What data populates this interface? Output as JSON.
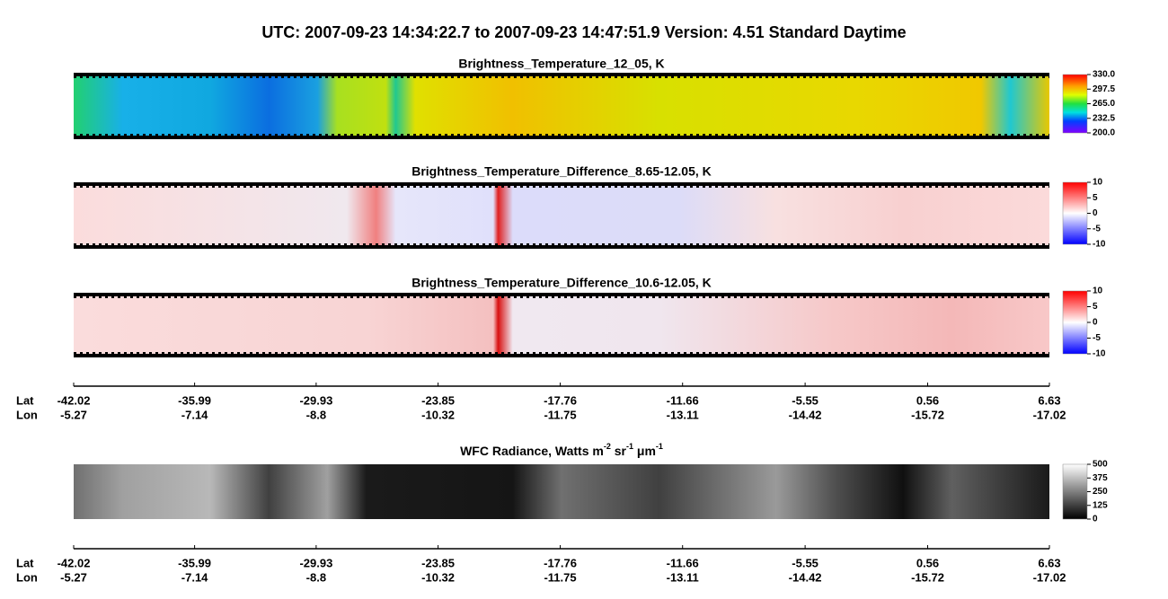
{
  "title": "UTC:  2007-09-23   14:34:22.7  to  2007-09-23   14:47:51.9    Version: 4.51  Standard Daytime",
  "panels": [
    {
      "title": "Brightness_Temperature_12_05, K",
      "range": [
        200,
        330
      ],
      "ticks": [
        {
          "value": 330,
          "label": "330.0"
        },
        {
          "value": 297.5,
          "label": "297.5"
        },
        {
          "value": 265,
          "label": "265.0"
        },
        {
          "value": 232.5,
          "label": "232.5"
        },
        {
          "value": 200,
          "label": "200.0"
        }
      ]
    },
    {
      "title": "Brightness_Temperature_Difference_8.65-12.05, K",
      "range": [
        -10,
        10
      ],
      "ticks": [
        10,
        5,
        0,
        -5,
        -10
      ]
    },
    {
      "title": "Brightness_Temperature_Difference_10.6-12.05, K",
      "range": [
        -10,
        10
      ],
      "ticks": [
        10,
        5,
        0,
        -5,
        -10
      ]
    },
    {
      "title_parts": [
        "WFC Radiance, Watts m",
        "-2",
        " sr",
        "-1",
        " μm",
        "-1"
      ],
      "range": [
        0,
        500
      ],
      "ticks": [
        500,
        375,
        250,
        125,
        0
      ]
    }
  ],
  "axes": [
    {
      "lat_label": "Lat",
      "lon_label": "Lon",
      "lat": [
        -42.02,
        -35.99,
        -29.93,
        -23.85,
        -17.76,
        -11.66,
        -5.55,
        0.56,
        6.63
      ],
      "lon": [
        -5.27,
        -7.14,
        -8.8,
        -10.32,
        -11.75,
        -13.11,
        -14.42,
        -15.72,
        -17.02
      ]
    },
    {
      "lat_label": "Lat",
      "lon_label": "Lon",
      "lat": [
        -42.02,
        -35.99,
        -29.93,
        -23.85,
        -17.76,
        -11.66,
        -5.55,
        0.56,
        6.63
      ],
      "lon": [
        -5.27,
        -7.14,
        -8.8,
        -10.32,
        -11.75,
        -13.11,
        -14.42,
        -15.72,
        -17.02
      ]
    }
  ]
}
